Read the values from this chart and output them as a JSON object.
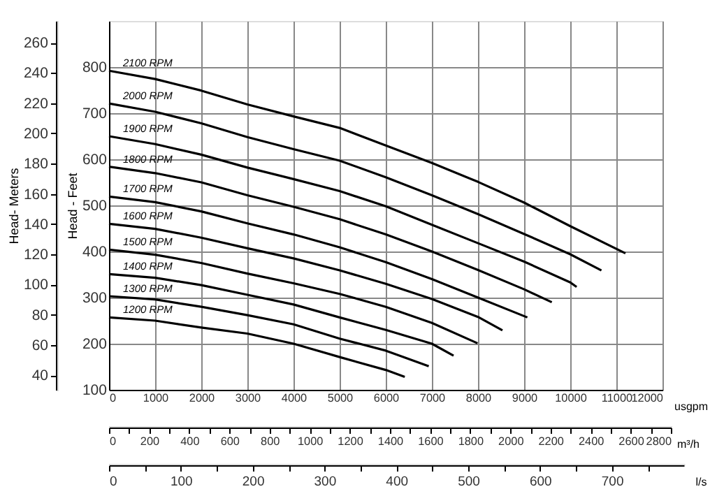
{
  "chart_data": {
    "type": "line",
    "xlabel": "usgpm",
    "ylabel": "Head - Feet",
    "y2label": "Head- Meters",
    "x2label": "m³/h",
    "annotations": [
      "0",
      "100",
      "200",
      "300",
      "400",
      "500",
      "600",
      "700",
      "l/s"
    ],
    "xlim": [
      0,
      12000
    ],
    "xticks": [
      0,
      1000,
      2000,
      3000,
      4000,
      5000,
      6000,
      7000,
      8000,
      9000,
      10000,
      11000,
      12000
    ],
    "ylim": [
      100,
      900
    ],
    "yticks": [
      100,
      200,
      300,
      400,
      500,
      600,
      700,
      800
    ],
    "y2lim": [
      30.48,
      274.32
    ],
    "y2ticks": [
      40,
      60,
      80,
      100,
      120,
      140,
      160,
      180,
      200,
      220,
      240,
      260
    ],
    "x2lim": [
      0,
      2800
    ],
    "x2ticks": [
      0,
      {
        "value": 100,
        "label": null
      },
      200,
      {
        "value": 300,
        "label": null
      },
      400,
      {
        "value": 500,
        "label": null
      },
      600,
      {
        "value": 700,
        "label": null
      },
      800,
      {
        "value": 900,
        "label": null
      },
      1000,
      {
        "value": 1100,
        "label": null
      },
      1200,
      {
        "value": 1300,
        "label": null
      },
      1400,
      {
        "value": 1500,
        "label": null
      },
      1600,
      {
        "value": 1700,
        "label": null
      },
      1800,
      {
        "value": 1900,
        "label": null
      },
      2000,
      {
        "value": 2100,
        "label": null
      },
      2200,
      {
        "value": 2300,
        "label": null
      },
      2400,
      {
        "value": 2500,
        "label": null
      },
      2600,
      {
        "value": 2700,
        "label": null
      },
      2800
    ],
    "grid": true,
    "series": [
      {
        "name": "2100 RPM",
        "color": "#000000",
        "x": [
          0,
          1000,
          2000,
          3000,
          4000,
          5000,
          6000,
          7000,
          8000,
          9000,
          10000,
          11197
        ],
        "values": [
          792,
          774,
          749,
          719,
          693,
          668,
          630,
          592,
          551,
          506,
          455,
          396
        ]
      },
      {
        "name": "2000 RPM",
        "color": "#000000",
        "x": [
          0,
          1000,
          2000,
          3000,
          4000,
          5000,
          6000,
          7000,
          8000,
          9000,
          10000,
          10676
        ],
        "values": [
          721,
          703,
          678,
          648,
          622,
          597,
          561,
          522,
          481,
          438,
          394,
          359
        ]
      },
      {
        "name": "1900 RPM",
        "color": "#000000",
        "x": [
          0,
          1000,
          2000,
          3000,
          4000,
          5000,
          6000,
          7000,
          8000,
          9000,
          10000,
          10138
        ],
        "values": [
          650,
          633,
          610,
          582,
          557,
          531,
          498,
          458,
          418,
          378,
          333,
          323
        ]
      },
      {
        "name": "1800 RPM",
        "color": "#000000",
        "x": [
          0,
          1000,
          2000,
          3000,
          4000,
          5000,
          6000,
          7000,
          8000,
          9000,
          9600
        ],
        "values": [
          584,
          570,
          550,
          522,
          497,
          470,
          437,
          400,
          360,
          318,
          290
        ]
      },
      {
        "name": "1700 RPM",
        "color": "#000000",
        "x": [
          0,
          1000,
          2000,
          3000,
          4000,
          5000,
          6000,
          7000,
          8000,
          9070
        ],
        "values": [
          519,
          507,
          487,
          461,
          437,
          409,
          377,
          340,
          300,
          257
        ]
      },
      {
        "name": "1600 RPM",
        "color": "#000000",
        "x": [
          0,
          1000,
          2000,
          3000,
          4000,
          5000,
          6000,
          7000,
          8000,
          8530
        ],
        "values": [
          460,
          449,
          430,
          407,
          385,
          359,
          330,
          297,
          258,
          229
        ]
      },
      {
        "name": "1500 RPM",
        "color": "#000000",
        "x": [
          0,
          1000,
          2000,
          3000,
          4000,
          5000,
          6000,
          7000,
          7990
        ],
        "values": [
          404,
          393,
          375,
          352,
          331,
          308,
          280,
          245,
          201
        ]
      },
      {
        "name": "1400 RPM",
        "color": "#000000",
        "x": [
          0,
          1000,
          2000,
          3000,
          4000,
          5000,
          6000,
          7000,
          7470
        ],
        "values": [
          351,
          343,
          327,
          306,
          285,
          257,
          230,
          200,
          174
        ]
      },
      {
        "name": "1300 RPM",
        "color": "#000000",
        "x": [
          0,
          1000,
          2000,
          3000,
          4000,
          5000,
          6000,
          6932
        ],
        "values": [
          303,
          296,
          280,
          262,
          242,
          211,
          185,
          151
        ]
      },
      {
        "name": "1200 RPM",
        "color": "#000000",
        "x": [
          0,
          1000,
          2000,
          3000,
          4000,
          5000,
          6000,
          6412
        ],
        "values": [
          257,
          250,
          235,
          222,
          200,
          171,
          143,
          128
        ]
      }
    ]
  }
}
